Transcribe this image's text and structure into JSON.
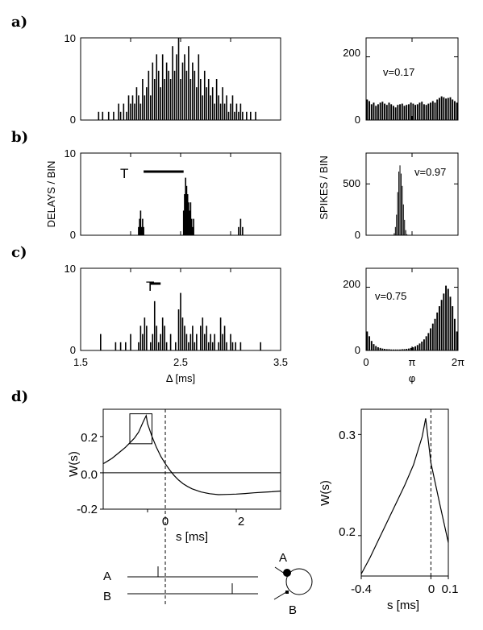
{
  "panel_labels": {
    "a": "a)",
    "b": "b)",
    "c": "c)",
    "d": "d)"
  },
  "colors": {
    "ink": "#000000",
    "background": "#ffffff"
  },
  "chart_data": [
    {
      "id": "a-left",
      "type": "bar",
      "panel": "a)",
      "xlim": [
        1.5,
        3.5
      ],
      "ylim": [
        0,
        10
      ],
      "yticks": [
        "0",
        "10"
      ],
      "x": [
        1.68,
        1.72,
        1.78,
        1.83,
        1.88,
        1.9,
        1.93,
        1.96,
        1.98,
        2.0,
        2.02,
        2.04,
        2.06,
        2.08,
        2.1,
        2.12,
        2.14,
        2.16,
        2.18,
        2.2,
        2.22,
        2.24,
        2.26,
        2.28,
        2.3,
        2.32,
        2.34,
        2.36,
        2.38,
        2.4,
        2.42,
        2.44,
        2.46,
        2.48,
        2.5,
        2.52,
        2.54,
        2.56,
        2.58,
        2.6,
        2.62,
        2.64,
        2.66,
        2.68,
        2.7,
        2.72,
        2.74,
        2.76,
        2.78,
        2.8,
        2.82,
        2.84,
        2.86,
        2.88,
        2.9,
        2.92,
        2.94,
        2.96,
        2.98,
        3.0,
        3.02,
        3.04,
        3.06,
        3.08,
        3.1,
        3.12,
        3.16,
        3.2,
        3.25
      ],
      "values": [
        1,
        1,
        1,
        1,
        2,
        1,
        2,
        1,
        3,
        2,
        3,
        2,
        4,
        3,
        2,
        5,
        3,
        4,
        6,
        3,
        7,
        5,
        8,
        6,
        4,
        8,
        5,
        7,
        6,
        5,
        9,
        6,
        8,
        10,
        5,
        7,
        8,
        6,
        9,
        5,
        7,
        6,
        4,
        8,
        5,
        3,
        6,
        4,
        5,
        3,
        4,
        2,
        5,
        3,
        2,
        4,
        2,
        3,
        1,
        2,
        3,
        1,
        2,
        1,
        2,
        1,
        1,
        1,
        1
      ]
    },
    {
      "id": "a-right",
      "type": "bar",
      "panel": "a)",
      "xlim": [
        0,
        6.2832
      ],
      "ylim": [
        0,
        260
      ],
      "yticks": [
        "0",
        "200"
      ],
      "annotation": "v=0.17",
      "values": [
        65,
        60,
        50,
        55,
        45,
        50,
        55,
        58,
        52,
        48,
        55,
        50,
        45,
        40,
        48,
        50,
        52,
        45,
        48,
        50,
        55,
        52,
        48,
        50,
        55,
        58,
        50,
        48,
        52,
        55,
        60,
        55,
        65,
        70,
        75,
        72,
        68,
        70,
        72,
        65,
        60,
        55
      ]
    },
    {
      "id": "b-left",
      "type": "bar",
      "panel": "b)",
      "xlim": [
        1.5,
        3.5
      ],
      "ylim": [
        0,
        10
      ],
      "yticks": [
        "0",
        "10"
      ],
      "ylabel": "DELAYS / BIN",
      "annotation": "T",
      "annotation_bar": [
        2.13,
        2.53
      ],
      "x": [
        2.08,
        2.09,
        2.1,
        2.11,
        2.12,
        2.13,
        2.53,
        2.54,
        2.55,
        2.56,
        2.57,
        2.58,
        2.59,
        2.6,
        2.61,
        2.62,
        2.63,
        3.08,
        3.1,
        3.12
      ],
      "values": [
        1,
        2,
        3,
        1,
        2,
        1,
        3,
        5,
        7,
        6,
        5,
        4,
        3,
        4,
        2,
        1,
        2,
        1,
        2,
        1
      ]
    },
    {
      "id": "b-right",
      "type": "bar",
      "panel": "b)",
      "xlim": [
        0,
        6.2832
      ],
      "ylim": [
        0,
        800
      ],
      "yticks": [
        "0",
        "500"
      ],
      "ylabel": "SPIKES / BIN",
      "annotation": "v=0.97",
      "values": [
        0,
        0,
        0,
        0,
        0,
        0,
        0,
        0,
        0,
        0,
        0,
        0,
        0,
        0,
        0,
        0,
        0,
        0,
        0,
        0,
        0,
        0,
        0,
        0,
        20,
        80,
        200,
        420,
        620,
        680,
        600,
        480,
        300,
        150,
        50,
        10,
        0,
        0,
        0,
        0,
        0,
        0,
        0,
        0,
        0,
        0,
        0,
        0,
        0,
        0,
        0,
        0,
        0,
        0,
        0,
        0,
        0,
        0,
        0,
        0,
        0,
        0,
        0,
        0,
        0,
        0,
        0,
        0,
        0,
        0,
        0,
        0,
        0,
        0,
        0,
        0,
        0,
        0,
        0,
        0
      ]
    },
    {
      "id": "c-left",
      "type": "bar",
      "panel": "c)",
      "xlim": [
        1.5,
        3.5
      ],
      "ylim": [
        0,
        10
      ],
      "yticks": [
        "0",
        "10"
      ],
      "xticks": [
        "1.5",
        "2.5",
        "3.5"
      ],
      "xlabel": "Δ [ms]",
      "annotation": "T",
      "annotation_bar": [
        2.2,
        2.3
      ],
      "x": [
        1.7,
        1.85,
        1.9,
        1.95,
        2.0,
        2.08,
        2.1,
        2.12,
        2.14,
        2.16,
        2.2,
        2.22,
        2.24,
        2.26,
        2.28,
        2.3,
        2.32,
        2.34,
        2.36,
        2.4,
        2.45,
        2.48,
        2.5,
        2.52,
        2.54,
        2.56,
        2.58,
        2.6,
        2.62,
        2.64,
        2.66,
        2.7,
        2.72,
        2.74,
        2.76,
        2.78,
        2.8,
        2.82,
        2.84,
        2.88,
        2.9,
        2.92,
        2.94,
        2.96,
        3.0,
        3.02,
        3.05,
        3.1,
        3.3
      ],
      "values": [
        2,
        1,
        1,
        1,
        2,
        1,
        3,
        2,
        4,
        3,
        1,
        2,
        6,
        3,
        1,
        2,
        4,
        3,
        1,
        2,
        1,
        5,
        7,
        4,
        3,
        2,
        1,
        2,
        3,
        1,
        2,
        3,
        4,
        2,
        3,
        1,
        2,
        1,
        2,
        1,
        4,
        2,
        3,
        1,
        2,
        1,
        1,
        1,
        1
      ]
    },
    {
      "id": "c-right",
      "type": "bar",
      "panel": "c)",
      "xlim": [
        0,
        6.2832
      ],
      "ylim": [
        0,
        260
      ],
      "yticks": [
        "0",
        "200"
      ],
      "xticks": [
        "0",
        "π",
        "2π"
      ],
      "xlabel": "φ",
      "annotation": "v=0.75",
      "values": [
        60,
        45,
        30,
        20,
        14,
        10,
        8,
        6,
        5,
        4,
        4,
        3,
        3,
        3,
        3,
        3,
        4,
        4,
        5,
        6,
        8,
        10,
        13,
        17,
        22,
        28,
        35,
        45,
        55,
        70,
        85,
        100,
        120,
        140,
        160,
        180,
        205,
        195,
        170,
        140,
        100,
        60
      ]
    },
    {
      "id": "d-left",
      "type": "line",
      "panel": "d)",
      "xlim": [
        -1,
        3
      ],
      "ylim": [
        -0.2,
        0.35
      ],
      "yticks": [
        "-0.2",
        "0.0",
        "0.2"
      ],
      "xticks": [
        "0",
        "2"
      ],
      "xlabel": "s [ms]",
      "ylabel": "W(s)",
      "x": [
        -1.0,
        -0.9,
        -0.8,
        -0.7,
        -0.6,
        -0.5,
        -0.4,
        -0.3,
        -0.2,
        -0.1,
        -0.03,
        0.0,
        0.1,
        0.2,
        0.3,
        0.4,
        0.5,
        0.6,
        0.7,
        0.8,
        0.9,
        1.0,
        1.2,
        1.4,
        1.6,
        1.8,
        2.0,
        2.2,
        2.4,
        2.6,
        2.8,
        3.0
      ],
      "values": [
        0.05,
        0.065,
        0.08,
        0.1,
        0.12,
        0.14,
        0.165,
        0.19,
        0.225,
        0.28,
        0.315,
        0.27,
        0.2,
        0.14,
        0.09,
        0.05,
        0.015,
        -0.015,
        -0.04,
        -0.06,
        -0.075,
        -0.088,
        -0.105,
        -0.115,
        -0.12,
        -0.119,
        -0.117,
        -0.114,
        -0.11,
        -0.107,
        -0.104,
        -0.1
      ]
    },
    {
      "id": "d-right",
      "type": "line",
      "panel": "d)",
      "xlim": [
        -0.4,
        0.1
      ],
      "ylim": [
        0.16,
        0.325
      ],
      "yticks": [
        "0.2",
        "0.3"
      ],
      "xticks": [
        "-0.4",
        "0",
        "0.1"
      ],
      "xlabel": "s [ms]",
      "ylabel": "W(s)",
      "x": [
        -0.4,
        -0.35,
        -0.3,
        -0.25,
        -0.2,
        -0.15,
        -0.1,
        -0.05,
        -0.03,
        0.0,
        0.05,
        0.1
      ],
      "values": [
        0.162,
        0.178,
        0.196,
        0.214,
        0.232,
        0.25,
        0.27,
        0.298,
        0.316,
        0.272,
        0.232,
        0.193
      ]
    }
  ],
  "spike_diagram": {
    "label_a": "A",
    "label_b": "B",
    "neuron_label_a": "A",
    "neuron_label_b": "B"
  }
}
